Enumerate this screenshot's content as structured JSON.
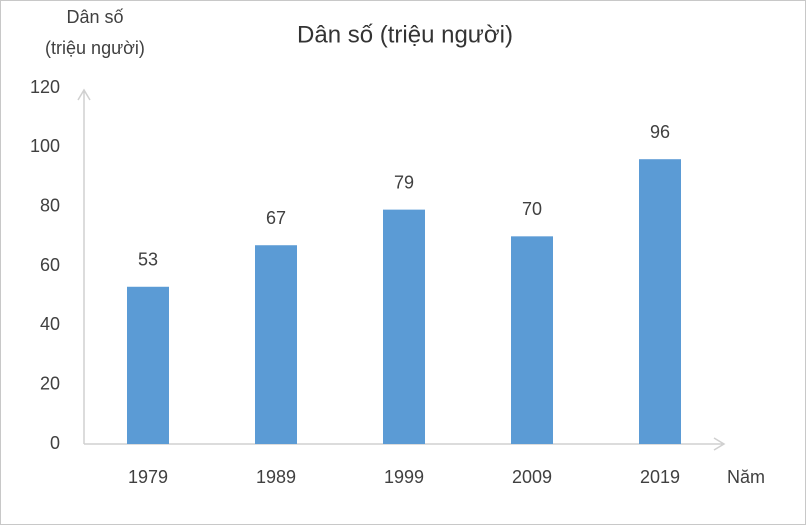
{
  "chart_data": {
    "type": "bar",
    "title": "Dân số (triệu người)",
    "ylabel": [
      "Dân số",
      "(triệu người)"
    ],
    "xlabel": "Năm",
    "categories": [
      "1979",
      "1989",
      "1999",
      "2009",
      "2019"
    ],
    "values": [
      53,
      67,
      79,
      70,
      96
    ],
    "color": "#5b9bd5",
    "ylim": [
      0,
      120
    ],
    "yticks": [
      0,
      20,
      40,
      60,
      80,
      100,
      120
    ],
    "grid": false,
    "data_labels": true
  }
}
